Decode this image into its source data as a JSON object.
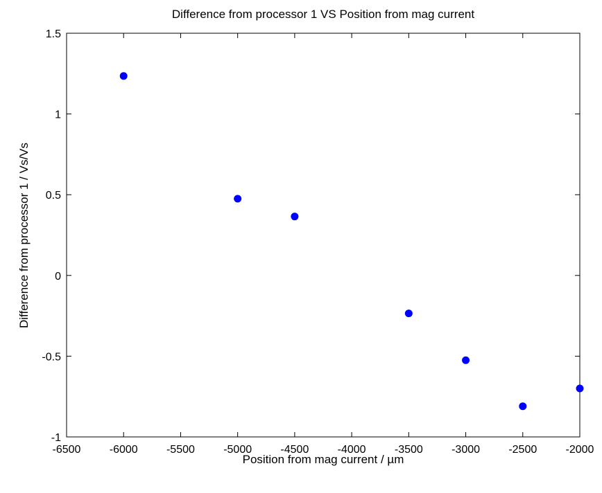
{
  "chart_data": {
    "type": "scatter",
    "title": "Difference from processor 1 VS Position from mag current",
    "xlabel": "Position from mag current / µm",
    "ylabel": "Difference from processor 1 / Vs/Vs",
    "xlim": [
      -6500,
      -2000
    ],
    "ylim": [
      -1,
      1.5
    ],
    "xticks": [
      -6500,
      -6000,
      -5500,
      -5000,
      -4500,
      -4000,
      -3500,
      -3000,
      -2500,
      -2000
    ],
    "xtick_labels": [
      "-6500",
      "-6000",
      "-5500",
      "-5000",
      "-4500",
      "-4000",
      "-3500",
      "-3000",
      "-2500",
      "-2000"
    ],
    "yticks": [
      -1,
      -0.5,
      0,
      0.5,
      1,
      1.5
    ],
    "ytick_labels": [
      "-1",
      "-0.5",
      "0",
      "0.5",
      "1",
      "1.5"
    ],
    "grid": false,
    "marker_color": "#0000ff",
    "series": [
      {
        "x": [
          -6000,
          -5000,
          -4500,
          -3500,
          -3000,
          -2500,
          -2000
        ],
        "y": [
          1.235,
          0.475,
          0.365,
          -0.235,
          -0.525,
          -0.81,
          -0.7
        ]
      }
    ]
  }
}
